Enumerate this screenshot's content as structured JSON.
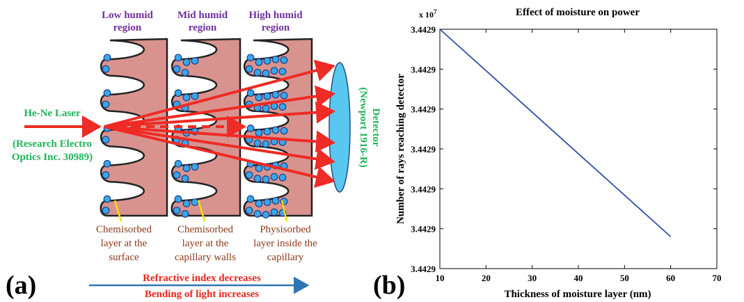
{
  "panel_a": {
    "label": "(a)",
    "regions": [
      {
        "title_line1": "Low humid",
        "title_line2": "region",
        "caption": [
          "Chemisorbed",
          "layer at the",
          "surface"
        ]
      },
      {
        "title_line1": "Mid humid",
        "title_line2": "region",
        "caption": [
          "Chemisorbed",
          "layer at the",
          "capillary walls"
        ]
      },
      {
        "title_line1": "High humid",
        "title_line2": "region",
        "caption": [
          "Physisorbed",
          "layer inside the",
          "capillary"
        ]
      }
    ],
    "laser": {
      "name": "He-Ne Laser",
      "maker_line1": "(Research Electro",
      "maker_line2": "Optics Inc. 30989)"
    },
    "detector": {
      "line1": "Detector",
      "line2": "(Newport 1916-R)"
    },
    "bottom_line1": "Refractive index decreases",
    "bottom_line2": "Bending of light increases",
    "colors": {
      "region_title": "#7030a0",
      "laser_text": "#1fb35a",
      "caption": "#8b3a1a",
      "beam": "#ee2b24",
      "bottom_text": "#e8261c",
      "bottom_arrow": "#2e75b6",
      "capillary_fill": "#d9938f",
      "droplet": "#3aa6e8",
      "detector_fill": "#58c8f0"
    }
  },
  "panel_b": {
    "label": "(b)",
    "chart_data": {
      "type": "line",
      "title": "Effect of moisture on power",
      "xlabel": "Thickness of moisture layer (nm)",
      "ylabel": "Number of rays reaching detector",
      "scale_label": "x 10",
      "scale_exponent": "7",
      "x_ticks": [
        "10",
        "20",
        "30",
        "40",
        "50",
        "60",
        "70"
      ],
      "y_ticks": [
        "3.4429",
        "3.4429",
        "3.4429",
        "3.4429",
        "3.4429",
        "3.4429",
        "3.4429"
      ],
      "xlim": [
        10,
        70
      ],
      "ylim_ticks": [
        0,
        6
      ],
      "series": [
        {
          "x": [
            10,
            60
          ],
          "y_tick_units": [
            6.0,
            0.8
          ],
          "color": "#3050a8"
        }
      ],
      "grid": false
    }
  }
}
